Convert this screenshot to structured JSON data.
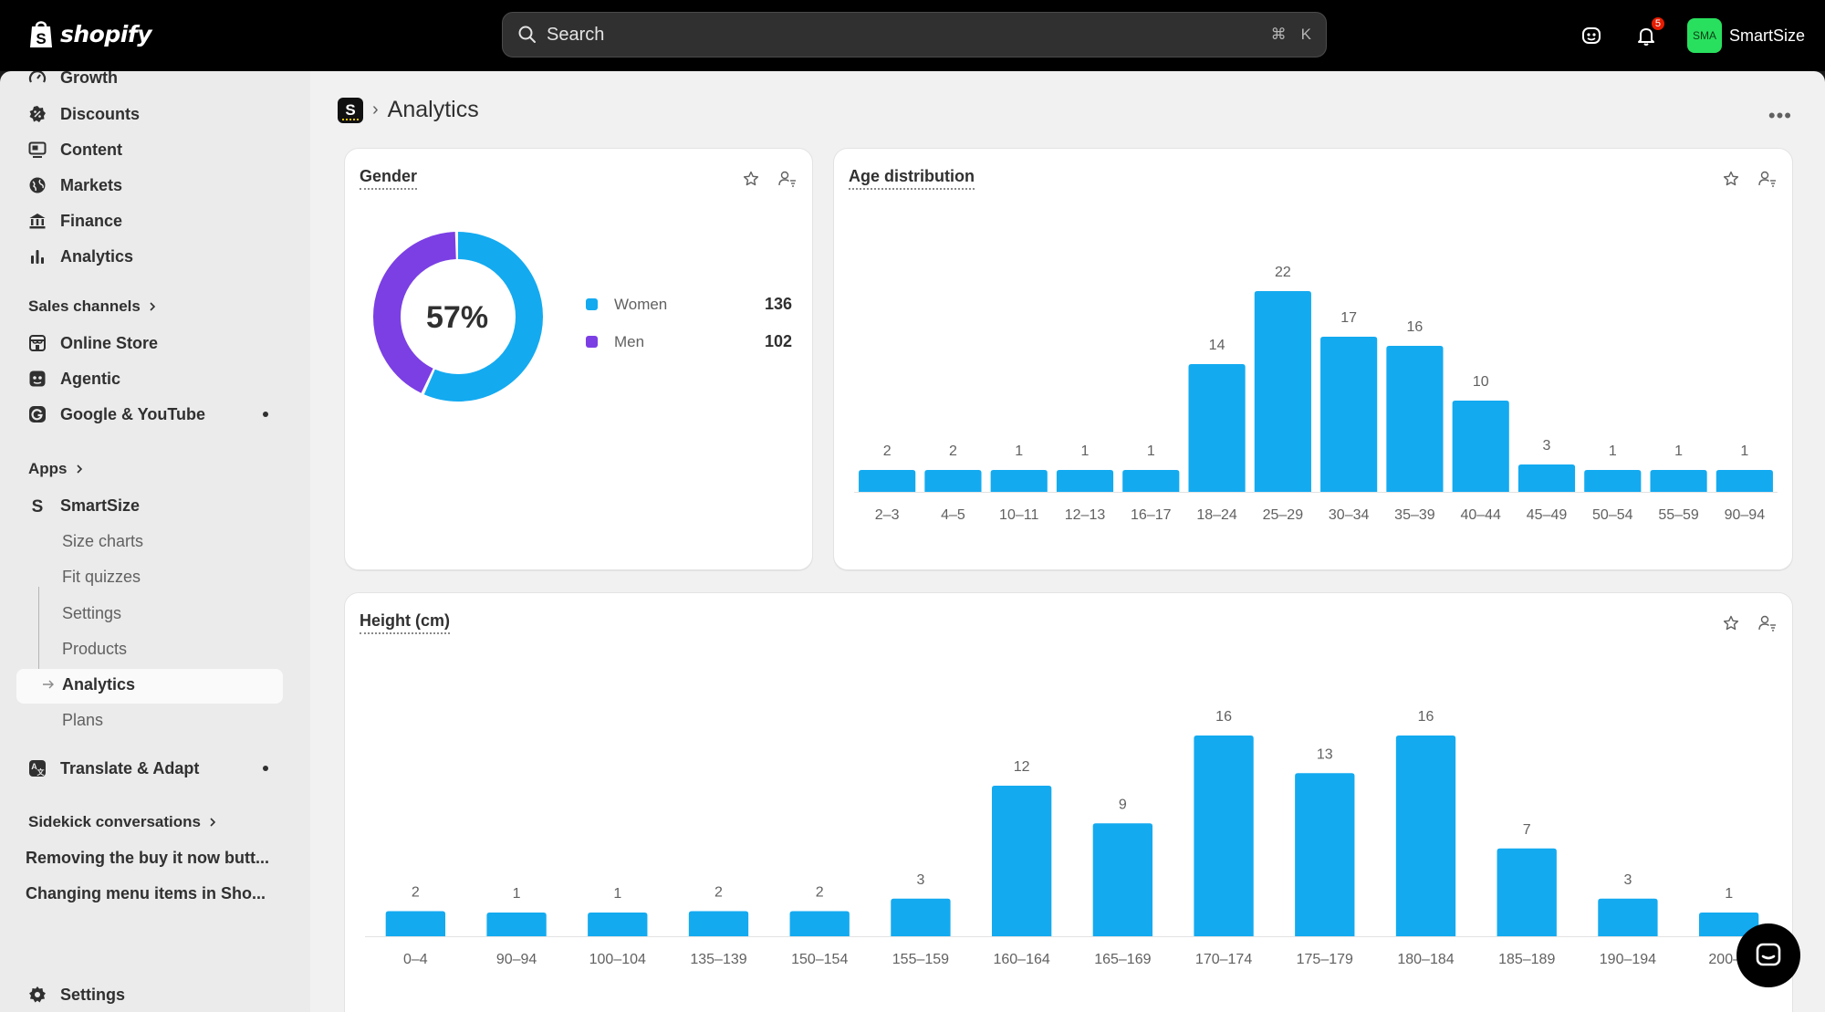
{
  "topbar": {
    "logo_text": "shopify",
    "search_placeholder": "Search",
    "shortcut_cmd": "⌘",
    "shortcut_key": "K",
    "notification_count": "5",
    "avatar_initials": "SMA",
    "store_name": "SmartSize"
  },
  "sidebar": {
    "items": [
      {
        "label": "Growth",
        "icon": "growth-icon"
      },
      {
        "label": "Discounts",
        "icon": "discount-icon"
      },
      {
        "label": "Content",
        "icon": "content-icon"
      },
      {
        "label": "Markets",
        "icon": "globe-icon"
      },
      {
        "label": "Finance",
        "icon": "bank-icon"
      },
      {
        "label": "Analytics",
        "icon": "bar-chart-icon"
      }
    ],
    "sales_channels_heading": "Sales channels",
    "sales_channels": [
      {
        "label": "Online Store",
        "icon": "store-icon"
      },
      {
        "label": "Agentic",
        "icon": "robot-icon"
      },
      {
        "label": "Google & YouTube",
        "icon": "google-icon"
      }
    ],
    "apps_heading": "Apps",
    "app_name": "SmartSize",
    "app_subitems": [
      "Size charts",
      "Fit quizzes",
      "Settings",
      "Products",
      "Analytics",
      "Plans"
    ],
    "translate_app": "Translate & Adapt",
    "sidekick_heading": "Sidekick conversations",
    "conversations": [
      "Removing the buy it now butt...",
      "Changing menu items in Sho..."
    ],
    "settings_label": "Settings"
  },
  "page": {
    "app_icon_letter": "S",
    "breadcrumb_sep": "›",
    "title": "Analytics",
    "more": "•••"
  },
  "gender": {
    "title": "Gender",
    "center_pct": "57%",
    "legend": [
      {
        "label": "Women",
        "value": "136",
        "color": "#13aaf0"
      },
      {
        "label": "Men",
        "value": "102",
        "color": "#7b3fe4"
      }
    ]
  },
  "chart_data": [
    {
      "type": "pie",
      "title": "Gender",
      "categories": [
        "Women",
        "Men"
      ],
      "values": [
        136,
        102
      ]
    },
    {
      "type": "bar",
      "title": "Age distribution",
      "categories": [
        "2–3",
        "4–5",
        "10–11",
        "12–13",
        "16–17",
        "18–24",
        "25–29",
        "30–34",
        "35–39",
        "40–44",
        "45–49",
        "50–54",
        "55–59",
        "90–94"
      ],
      "values": [
        2,
        2,
        1,
        1,
        1,
        14,
        22,
        17,
        16,
        10,
        3,
        1,
        1,
        1
      ],
      "color": "#13aaf0"
    },
    {
      "type": "bar",
      "title": "Height (cm)",
      "categories": [
        "0–4",
        "90–94",
        "100–104",
        "135–139",
        "150–154",
        "155–159",
        "160–164",
        "165–169",
        "170–174",
        "175–179",
        "180–184",
        "185–189",
        "190–194",
        "200–2"
      ],
      "values": [
        2,
        1,
        1,
        2,
        2,
        3,
        12,
        9,
        16,
        13,
        16,
        7,
        3,
        1
      ],
      "color": "#13aaf0"
    }
  ]
}
